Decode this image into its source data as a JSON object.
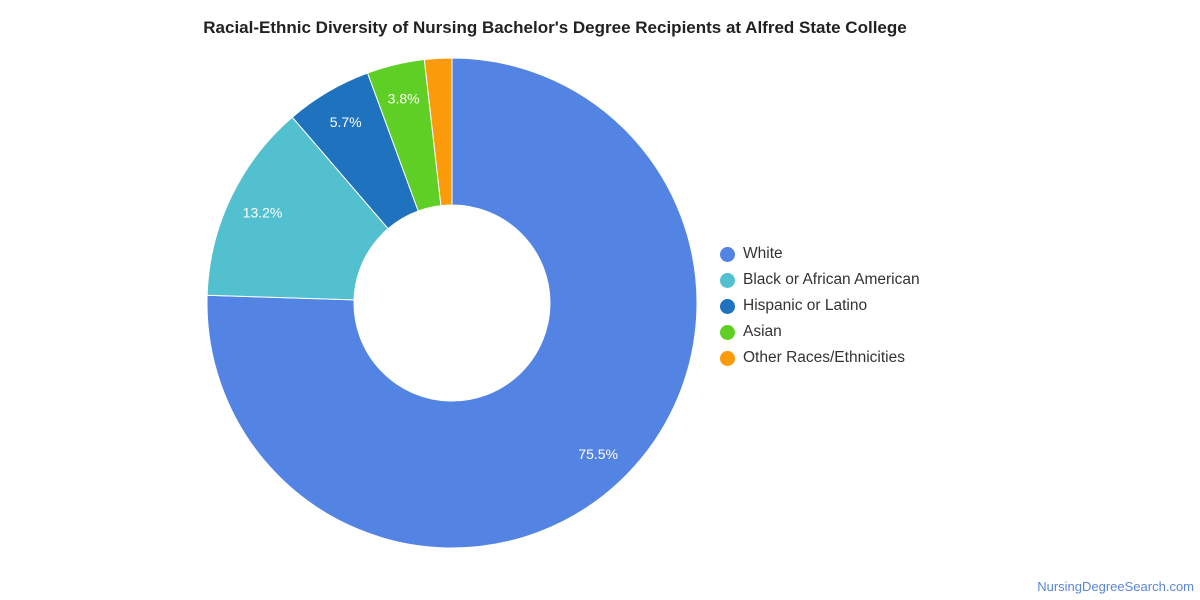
{
  "chart_data": {
    "type": "pie",
    "subtype": "donut",
    "title": "Racial-Ethnic Diversity of Nursing Bachelor's Degree Recipients at Alfred State College",
    "categories": [
      "White",
      "Black or African American",
      "Hispanic or Latino",
      "Asian",
      "Other Races/Ethnicities"
    ],
    "values": [
      75.5,
      13.2,
      5.7,
      3.8,
      1.8
    ],
    "labels": [
      "75.5%",
      "13.2%",
      "5.7%",
      "3.8%",
      ""
    ],
    "colors": [
      "#5484e3",
      "#52c0cf",
      "#1f72bd",
      "#5fcf26",
      "#fb9a0a"
    ],
    "legend_position": "right"
  },
  "credit": "NursingDegreeSearch.com"
}
